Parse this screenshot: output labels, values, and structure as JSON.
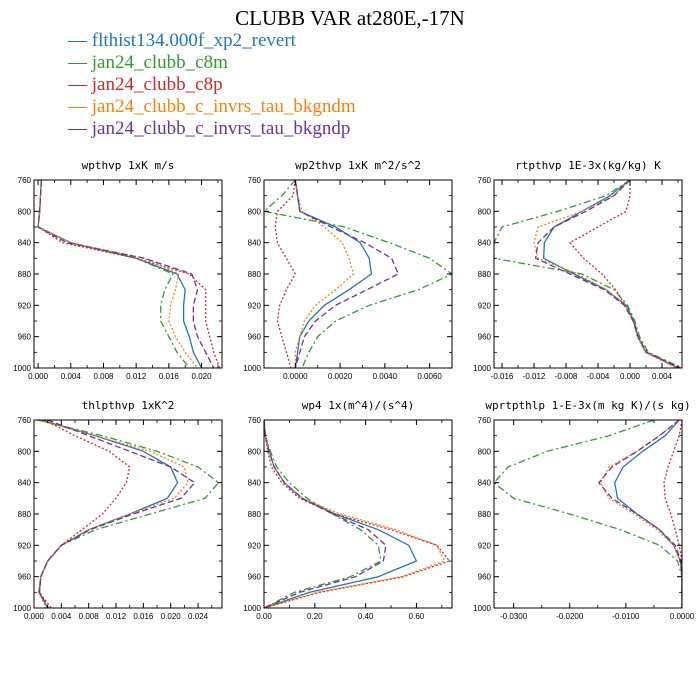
{
  "title": "CLUBB VAR at280E,-17N",
  "legend": [
    {
      "label": "flthist134.000f_xp2_revert",
      "color": "#1f77b4",
      "dash": "solid"
    },
    {
      "label": "jan24_clubb_c8m",
      "color": "#2ca02c",
      "dash": "dashdot"
    },
    {
      "label": "jan24_clubb_c8p",
      "color": "#d62728",
      "dash": "dot"
    },
    {
      "label": "jan24_clubb_c_invrs_tau_bkgndm",
      "color": "#ff7f0e",
      "dash": "dot"
    },
    {
      "label": "jan24_clubb_c_invrs_tau_bkgndp",
      "color": "#7030a0",
      "dash": "dash"
    }
  ],
  "chart_data": [
    {
      "type": "line",
      "title": "wpthvp  1xK m/s",
      "xlim": [
        -0.0005,
        0.0225
      ],
      "ylim": [
        760,
        1000
      ],
      "xticks": [
        0.0,
        0.004,
        0.008,
        0.012,
        0.016,
        0.02
      ],
      "xtick_labels": [
        "0.000",
        "0.004",
        "0.008",
        "0.012",
        "0.016",
        "0.020"
      ],
      "yticks": [
        760,
        800,
        840,
        880,
        920,
        960,
        1000
      ],
      "ytick_labels": [
        "760",
        "800",
        "840",
        "880",
        "920",
        "960",
        "1000"
      ],
      "y": [
        760,
        780,
        800,
        820,
        840,
        860,
        880,
        900,
        920,
        940,
        960,
        980,
        1000
      ],
      "series": [
        {
          "x": [
            0.0004,
            0.0003,
            0.0002,
            0.0,
            0.004,
            0.012,
            0.017,
            0.018,
            0.0178,
            0.0178,
            0.0185,
            0.019,
            0.02
          ]
        },
        {
          "x": [
            0.0004,
            0.0003,
            0.0002,
            0.0,
            0.004,
            0.012,
            0.0165,
            0.0155,
            0.015,
            0.015,
            0.016,
            0.017,
            0.0185
          ]
        },
        {
          "x": [
            0.0004,
            0.0003,
            0.0002,
            0.0,
            0.003,
            0.012,
            0.0185,
            0.0205,
            0.0205,
            0.0205,
            0.021,
            0.0215,
            0.0222
          ]
        },
        {
          "x": [
            0.0004,
            0.0003,
            0.0002,
            0.0,
            0.004,
            0.013,
            0.0172,
            0.0168,
            0.0162,
            0.016,
            0.0168,
            0.018,
            0.0195
          ]
        },
        {
          "x": [
            0.0004,
            0.0003,
            0.0002,
            0.0,
            0.0035,
            0.013,
            0.0188,
            0.0195,
            0.019,
            0.019,
            0.0195,
            0.0205,
            0.0215
          ]
        }
      ]
    },
    {
      "type": "line",
      "title": "wp2thvp  1xK m^2/s^2",
      "xlim": [
        -0.0014,
        0.007
      ],
      "ylim": [
        760,
        1000
      ],
      "xticks": [
        0.0,
        0.002,
        0.004,
        0.006
      ],
      "xtick_labels": [
        "0.0000",
        "0.0020",
        "0.0040",
        "0.0060"
      ],
      "yticks": [
        760,
        800,
        840,
        880,
        920,
        960,
        1000
      ],
      "ytick_labels": [
        "760",
        "800",
        "840",
        "880",
        "920",
        "960",
        "1000"
      ],
      "y": [
        760,
        780,
        800,
        820,
        840,
        860,
        880,
        900,
        920,
        940,
        960,
        980,
        1000
      ],
      "series": [
        {
          "x": [
            0.0,
            0.0001,
            0.0002,
            0.0018,
            0.0029,
            0.0033,
            0.0034,
            0.0024,
            0.0013,
            0.0006,
            0.0002,
            0.0001,
            0.0
          ]
        },
        {
          "x": [
            0.0,
            -0.0006,
            -0.0014,
            0.0022,
            0.0042,
            0.006,
            0.007,
            0.0055,
            0.0033,
            0.0018,
            0.001,
            0.0006,
            0.0003
          ]
        },
        {
          "x": [
            0.0,
            -0.0001,
            -0.0008,
            -0.0009,
            -0.0008,
            -0.0004,
            0.0,
            -0.0004,
            -0.0007,
            -0.0008,
            -0.0006,
            -0.0004,
            -0.0002
          ]
        },
        {
          "x": [
            0.0,
            0.0001,
            0.0003,
            0.0013,
            0.0021,
            0.0024,
            0.0026,
            0.0018,
            0.0009,
            0.0004,
            0.0002,
            0.0,
            0.0
          ]
        },
        {
          "x": [
            0.0,
            0.0001,
            0.0002,
            0.0016,
            0.0031,
            0.0043,
            0.0046,
            0.0032,
            0.0018,
            0.0009,
            0.0004,
            0.0002,
            0.0
          ]
        }
      ]
    },
    {
      "type": "line",
      "title": "rtpthvp  1E-3x(kg/kg) K",
      "xlim": [
        -0.017,
        0.0065
      ],
      "ylim": [
        760,
        1000
      ],
      "xticks": [
        -0.016,
        -0.012,
        -0.008,
        -0.004,
        0.0,
        0.004
      ],
      "xtick_labels": [
        "-0.016",
        "-0.012",
        "-0.008",
        "-0.004",
        "0.000",
        "0.004"
      ],
      "yticks": [
        760,
        800,
        840,
        880,
        920,
        960,
        1000
      ],
      "ytick_labels": [
        "760",
        "800",
        "840",
        "880",
        "920",
        "960",
        "1000"
      ],
      "y": [
        760,
        780,
        800,
        820,
        840,
        860,
        880,
        900,
        920,
        940,
        960,
        980,
        1000
      ],
      "series": [
        {
          "x": [
            0.0,
            -0.0025,
            -0.006,
            -0.0095,
            -0.0107,
            -0.0108,
            -0.007,
            -0.003,
            -0.0005,
            0.0005,
            0.001,
            0.002,
            0.006
          ]
        },
        {
          "x": [
            0.0,
            -0.003,
            -0.009,
            -0.016,
            -0.017,
            -0.017,
            -0.006,
            -0.002,
            -0.0003,
            0.0006,
            0.0012,
            0.0023,
            0.0065
          ]
        },
        {
          "x": [
            0.0,
            0.0,
            -0.0005,
            -0.004,
            -0.0075,
            -0.0058,
            -0.0035,
            -0.0018,
            -0.0006,
            0.0004,
            0.001,
            0.002,
            0.0062
          ]
        },
        {
          "x": [
            0.0,
            -0.002,
            -0.006,
            -0.0115,
            -0.012,
            -0.0115,
            -0.0065,
            -0.003,
            -0.0006,
            0.0004,
            0.0009,
            0.0019,
            0.0058
          ]
        },
        {
          "x": [
            0.0,
            -0.002,
            -0.0055,
            -0.0095,
            -0.0115,
            -0.0118,
            -0.0075,
            -0.0032,
            -0.0007,
            0.0004,
            0.001,
            0.0021,
            0.0063
          ]
        }
      ]
    },
    {
      "type": "line",
      "title": "thlpthvp  1xK^2",
      "xlim": [
        0.0,
        0.0275
      ],
      "ylim": [
        760,
        1000
      ],
      "xticks": [
        0.0,
        0.004,
        0.008,
        0.012,
        0.016,
        0.02,
        0.024
      ],
      "xtick_labels": [
        "0.000",
        "0.004",
        "0.008",
        "0.012",
        "0.016",
        "0.020",
        "0.024"
      ],
      "yticks": [
        760,
        800,
        840,
        880,
        920,
        960,
        1000
      ],
      "ytick_labels": [
        "760",
        "800",
        "840",
        "880",
        "920",
        "960",
        "1000"
      ],
      "y": [
        760,
        780,
        800,
        820,
        840,
        860,
        880,
        900,
        920,
        940,
        960,
        980,
        1000
      ],
      "series": [
        {
          "x": [
            0.001,
            0.009,
            0.016,
            0.02,
            0.021,
            0.0195,
            0.014,
            0.008,
            0.004,
            0.002,
            0.001,
            0.0007,
            0.002
          ]
        },
        {
          "x": [
            0.0005,
            0.01,
            0.018,
            0.024,
            0.027,
            0.025,
            0.017,
            0.009,
            0.004,
            0.002,
            0.001,
            0.0008,
            0.002
          ]
        },
        {
          "x": [
            0.0015,
            0.006,
            0.011,
            0.014,
            0.0135,
            0.012,
            0.01,
            0.007,
            0.004,
            0.002,
            0.001,
            0.0008,
            0.0025
          ]
        },
        {
          "x": [
            0.0005,
            0.009,
            0.017,
            0.022,
            0.0225,
            0.0205,
            0.014,
            0.008,
            0.004,
            0.002,
            0.001,
            0.0007,
            0.0018
          ]
        },
        {
          "x": [
            0.002,
            0.008,
            0.014,
            0.02,
            0.0235,
            0.0215,
            0.0145,
            0.0082,
            0.004,
            0.002,
            0.001,
            0.0008,
            0.0021
          ]
        }
      ]
    },
    {
      "type": "line",
      "title": "wp4  1x(m^4)/(s^4)",
      "xlim": [
        0.0,
        0.74
      ],
      "ylim": [
        760,
        1000
      ],
      "xticks": [
        0.0,
        0.2,
        0.4,
        0.6
      ],
      "xtick_labels": [
        "0.00",
        "0.20",
        "0.40",
        "0.60"
      ],
      "yticks": [
        760,
        800,
        840,
        880,
        920,
        960,
        1000
      ],
      "ytick_labels": [
        "760",
        "800",
        "840",
        "880",
        "920",
        "960",
        "1000"
      ],
      "y": [
        760,
        780,
        800,
        820,
        840,
        860,
        880,
        900,
        920,
        940,
        960,
        980,
        1000
      ],
      "series": [
        {
          "x": [
            0.0,
            0.005,
            0.02,
            0.04,
            0.08,
            0.15,
            0.28,
            0.45,
            0.57,
            0.6,
            0.45,
            0.18,
            0.0
          ]
        },
        {
          "x": [
            0.0,
            0.005,
            0.025,
            0.05,
            0.1,
            0.17,
            0.27,
            0.38,
            0.45,
            0.46,
            0.34,
            0.12,
            0.0
          ]
        },
        {
          "x": [
            0.0,
            0.005,
            0.015,
            0.03,
            0.07,
            0.14,
            0.28,
            0.5,
            0.68,
            0.73,
            0.55,
            0.22,
            0.0
          ]
        },
        {
          "x": [
            0.0,
            0.005,
            0.02,
            0.04,
            0.08,
            0.15,
            0.3,
            0.52,
            0.68,
            0.71,
            0.54,
            0.21,
            0.0
          ]
        },
        {
          "x": [
            0.0,
            0.005,
            0.02,
            0.04,
            0.08,
            0.15,
            0.27,
            0.41,
            0.48,
            0.47,
            0.36,
            0.14,
            0.0
          ]
        }
      ]
    },
    {
      "type": "line",
      "title": "wprtpthlp  1-E-3x(m kg K)/(s kg)",
      "xlim": [
        -0.0335,
        0.0
      ],
      "ylim": [
        760,
        1000
      ],
      "xticks": [
        -0.03,
        -0.02,
        -0.01,
        0.0
      ],
      "xtick_labels": [
        "-0.0300",
        "-0.0200",
        "-0.0100",
        "0.0000"
      ],
      "yticks": [
        760,
        800,
        840,
        880,
        920,
        960,
        1000
      ],
      "ytick_labels": [
        "760",
        "800",
        "840",
        "880",
        "920",
        "960",
        "1000"
      ],
      "y": [
        760,
        780,
        800,
        820,
        840,
        860,
        880,
        900,
        920,
        940,
        960,
        980,
        1000
      ],
      "series": [
        {
          "x": [
            -0.0005,
            -0.003,
            -0.007,
            -0.0105,
            -0.012,
            -0.0115,
            -0.008,
            -0.004,
            -0.0015,
            -0.0003,
            0.0,
            0.0,
            0.0
          ]
        },
        {
          "x": [
            -0.005,
            -0.013,
            -0.024,
            -0.031,
            -0.0335,
            -0.03,
            -0.02,
            -0.011,
            -0.004,
            -0.0008,
            0.0,
            0.0,
            0.0
          ]
        },
        {
          "x": [
            0.0,
            -0.0005,
            -0.0015,
            -0.0025,
            -0.0032,
            -0.003,
            -0.002,
            -0.0012,
            -0.0005,
            0.0,
            0.0,
            0.0,
            0.0
          ]
        },
        {
          "x": [
            -0.0005,
            -0.004,
            -0.008,
            -0.013,
            -0.0145,
            -0.013,
            -0.0085,
            -0.0045,
            -0.0015,
            -0.0003,
            0.0,
            0.0,
            0.0
          ]
        },
        {
          "x": [
            -0.0005,
            -0.004,
            -0.008,
            -0.0125,
            -0.0148,
            -0.0125,
            -0.008,
            -0.004,
            -0.0012,
            -0.0002,
            0.0,
            0.0,
            0.0
          ]
        }
      ]
    }
  ]
}
